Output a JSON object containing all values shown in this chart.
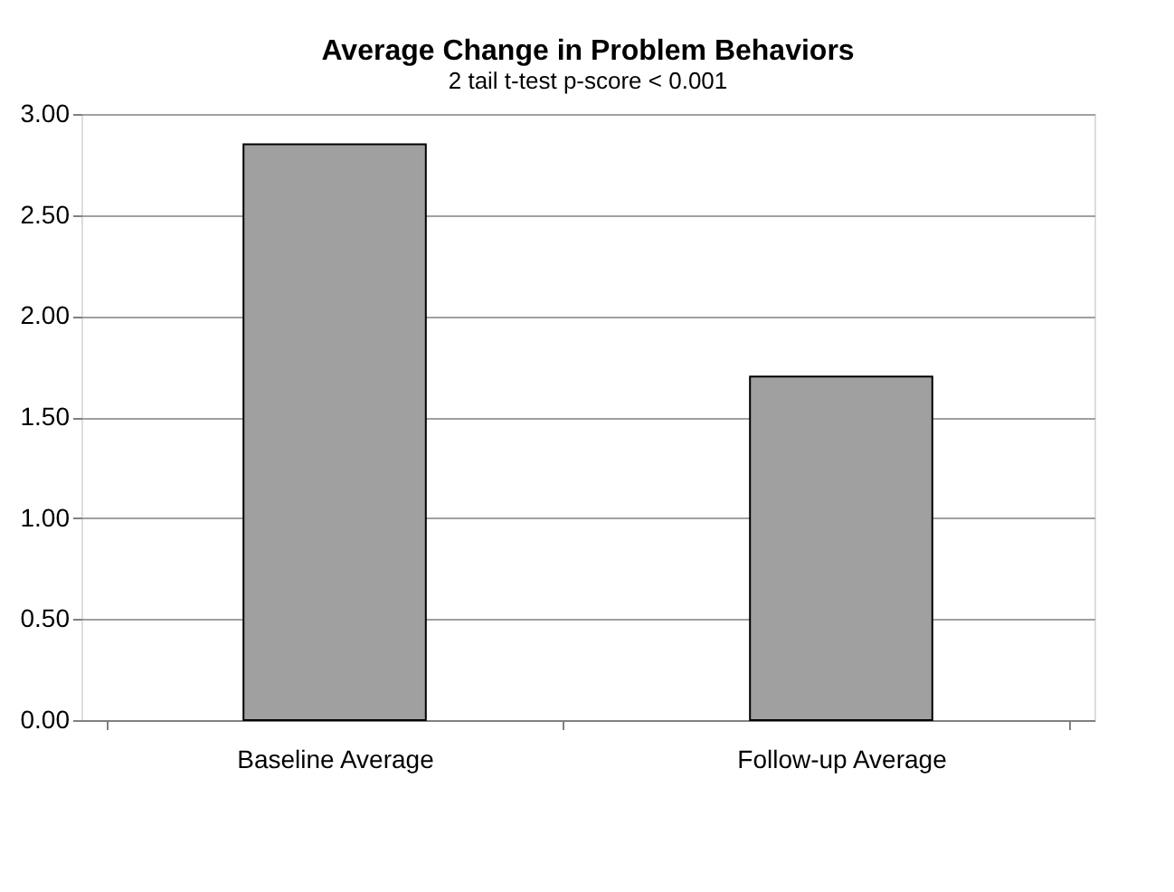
{
  "chart_data": {
    "type": "bar",
    "title": "Average Change in Problem Behaviors",
    "subtitle": "2 tail t-test p-score < 0.001",
    "categories": [
      "Baseline Average",
      "Follow-up Average"
    ],
    "values": [
      2.85,
      1.7
    ],
    "color": "#a0a0a0",
    "ylim": [
      0,
      3
    ],
    "yticks": [
      {
        "value": 0,
        "label": "0.00"
      },
      {
        "value": 0.5,
        "label": "0.50"
      },
      {
        "value": 1,
        "label": "1.00"
      },
      {
        "value": 1.5,
        "label": "1.50"
      },
      {
        "value": 2,
        "label": "2.00"
      },
      {
        "value": 2.5,
        "label": "2.50"
      },
      {
        "value": 3,
        "label": "3.00"
      }
    ],
    "grid": "y"
  }
}
